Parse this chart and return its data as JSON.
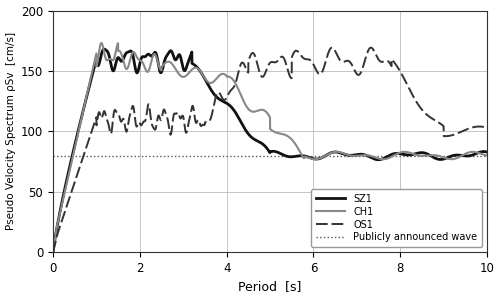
{
  "xlabel": "Period  [s]",
  "ylabel": "Pseudo Velocity Spectrum ρSv  [cm/s]",
  "xlim": [
    0,
    10
  ],
  "ylim": [
    0,
    200
  ],
  "xticks": [
    0,
    2,
    4,
    6,
    8,
    10
  ],
  "yticks": [
    0,
    50,
    100,
    150,
    200
  ],
  "publicly_announced_value": 80,
  "legend_labels": [
    "SZ1",
    "CH1",
    "OS1",
    "Publicly announced wave"
  ],
  "background_color": "#ffffff",
  "line_color_SZ1": "#111111",
  "line_color_CH1": "#888888",
  "line_color_OS1": "#333333",
  "line_color_pub": "#555555",
  "linewidth_SZ1": 2.0,
  "linewidth_CH1": 1.5,
  "linewidth_OS1": 1.4,
  "linewidth_pub": 1.0
}
